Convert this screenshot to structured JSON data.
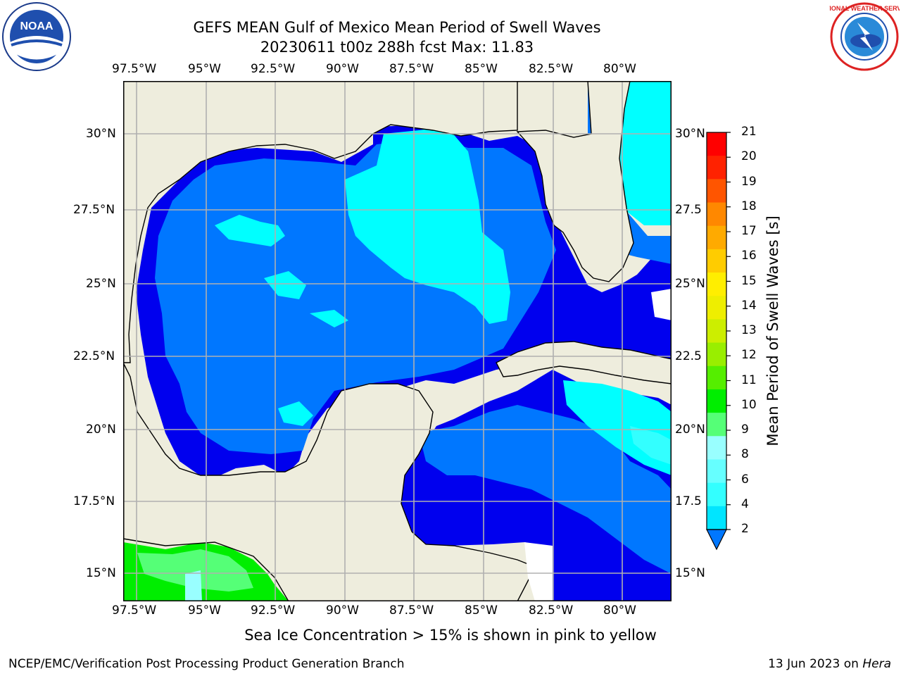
{
  "title_line1": "GEFS MEAN Gulf of Mexico Mean Period of Swell Waves",
  "title_line2": "20230611 t00z 288h fcst   Max: 11.83",
  "lon_labels": [
    "97.5°W",
    "95°W",
    "92.5°W",
    "90°W",
    "87.5°W",
    "85°W",
    "82.5°W",
    "80°W"
  ],
  "lat_labels_left": [
    "30°N",
    "27.5°N",
    "25°N",
    "22.5°N",
    "20°N",
    "17.5°N",
    "15°N"
  ],
  "lat_labels_right": [
    "30°N",
    "27.5",
    "25°N",
    "22.5",
    "20°N",
    "17.5",
    "15°N"
  ],
  "colorbar": {
    "title": "Mean Period of Swell Waves [s]",
    "ticks": [
      "2",
      "4",
      "6",
      "8",
      "9",
      "10",
      "11",
      "12",
      "13",
      "14",
      "15",
      "16",
      "17",
      "18",
      "19",
      "20",
      "21"
    ],
    "colors": [
      "#0077ff",
      "#00e5ff",
      "#33ffff",
      "#66ffff",
      "#99ffff",
      "#55ff77",
      "#00ee00",
      "#55ee00",
      "#99ee00",
      "#ccee00",
      "#eeee00",
      "#ffee00",
      "#ffcc00",
      "#ffaa00",
      "#ff8800",
      "#ff5500",
      "#ff2200",
      "#ff0000"
    ]
  },
  "map_colors": {
    "land": "#eeeddd",
    "deep_blue": "#0000ee",
    "mid_blue": "#0077ff",
    "cyan": "#00ffff",
    "light_cyan": "#33ffff",
    "green": "#00ee00",
    "light_green": "#55ff77"
  },
  "logos": {
    "left": "NOAA",
    "right": "NATIONAL WEATHER SERVICE"
  },
  "note": "Sea Ice Concentration > 15% is shown in pink to yellow",
  "footer_left": "NCEP/EMC/Verification Post Processing Product Generation Branch",
  "footer_right_date": "13 Jun 2023 on",
  "footer_right_host": "Hera"
}
